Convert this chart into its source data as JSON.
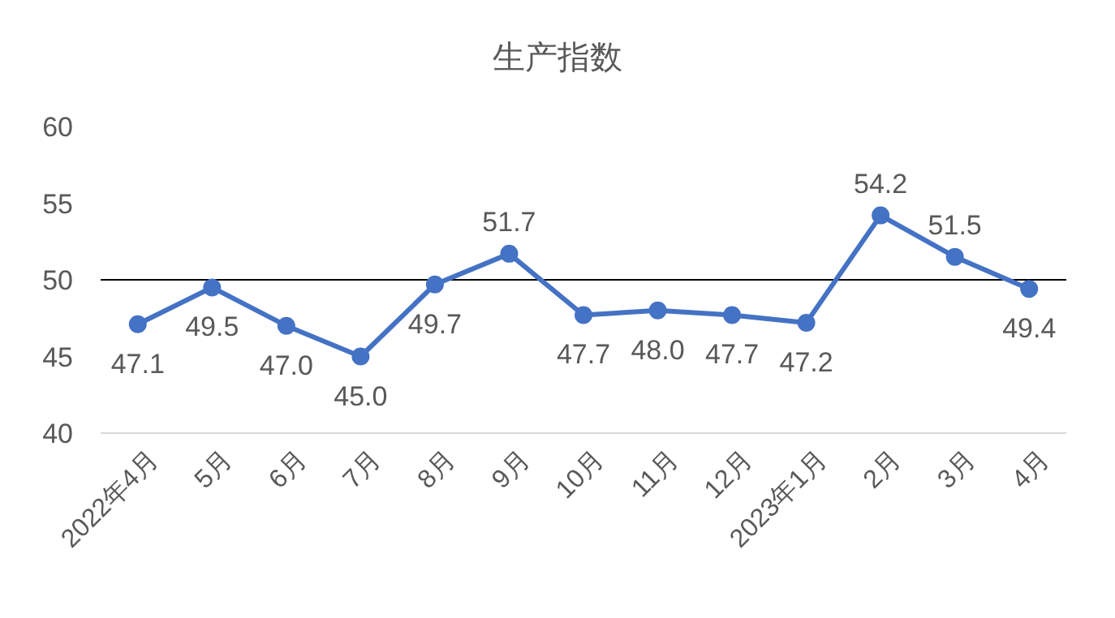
{
  "chart_data": {
    "type": "line",
    "title": "生产指数",
    "categories": [
      "2022年4月",
      "5月",
      "6月",
      "7月",
      "8月",
      "9月",
      "10月",
      "11月",
      "12月",
      "2023年1月",
      "2月",
      "3月",
      "4月"
    ],
    "series": [
      {
        "color": "#4472c4",
        "values": [
          47.1,
          49.5,
          47.0,
          45.0,
          49.7,
          51.7,
          47.7,
          48.0,
          47.7,
          47.2,
          54.2,
          51.5,
          49.4
        ],
        "value_labels": [
          "47.1",
          "49.5",
          "47.0",
          "45.0",
          "49.7",
          "51.7",
          "47.7",
          "48.0",
          "47.7",
          "47.2",
          "54.2",
          "51.5",
          "49.4"
        ]
      }
    ],
    "ylim": [
      40,
      60
    ],
    "yticks": [
      40,
      45,
      50,
      55,
      60
    ],
    "grid": false,
    "marker": "circle",
    "line_style": "solid",
    "ref_lines": [
      {
        "axis": "y",
        "value": 50,
        "color": "#000000"
      }
    ]
  }
}
